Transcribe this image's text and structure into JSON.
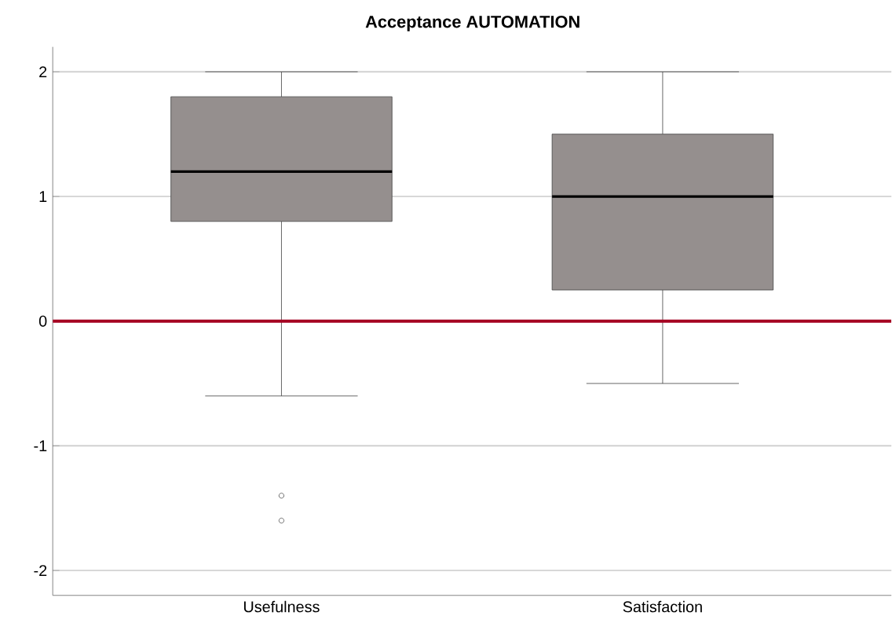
{
  "chart_data": {
    "type": "box",
    "title": "Acceptance AUTOMATION",
    "categories": [
      "Usefulness",
      "Satisfaction"
    ],
    "boxes": [
      {
        "low": -0.6,
        "q1": 0.8,
        "median": 1.2,
        "q3": 1.8,
        "high": 2,
        "outliers": [
          -1.4,
          -1.6
        ]
      },
      {
        "low": -0.5,
        "q1": 0.25,
        "median": 1.0,
        "q3": 1.5,
        "high": 2
      }
    ],
    "color": "#958f8e",
    "ylim": [
      -2.2,
      2.2
    ],
    "yticks": [
      -2,
      -1,
      0,
      1,
      2
    ],
    "grid": "y",
    "ref_lines": [
      {
        "axis": "y",
        "value": 0,
        "color": "#a50021"
      }
    ]
  }
}
